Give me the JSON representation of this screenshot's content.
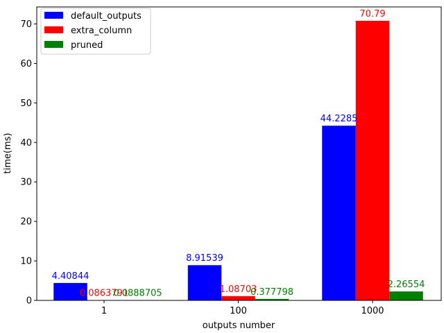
{
  "chart_data": {
    "type": "bar",
    "xlabel": "outputs number",
    "ylabel": "time(ms)",
    "categories": [
      "1",
      "100",
      "1000"
    ],
    "ylim": [
      0,
      74.3
    ],
    "yticks": [
      0,
      10,
      20,
      30,
      40,
      50,
      60,
      70
    ],
    "legend_position": "top-left",
    "grid": false,
    "series": [
      {
        "name": "default_outputs",
        "color": "#0000ff",
        "values": [
          4.40844,
          8.91539,
          44.2285
        ],
        "labels": [
          "4.40844",
          "8.91539",
          "44.2285"
        ]
      },
      {
        "name": "extra_column",
        "color": "#ff0000",
        "values": [
          0.0863791,
          1.08703,
          70.79
        ],
        "labels": [
          "0.0863791",
          "1.08703",
          "70.79"
        ]
      },
      {
        "name": "pruned",
        "color": "#008000",
        "values": [
          0.0888705,
          0.377798,
          2.26554
        ],
        "labels": [
          "0.0888705",
          "0.377798",
          "2.26554"
        ]
      }
    ]
  }
}
